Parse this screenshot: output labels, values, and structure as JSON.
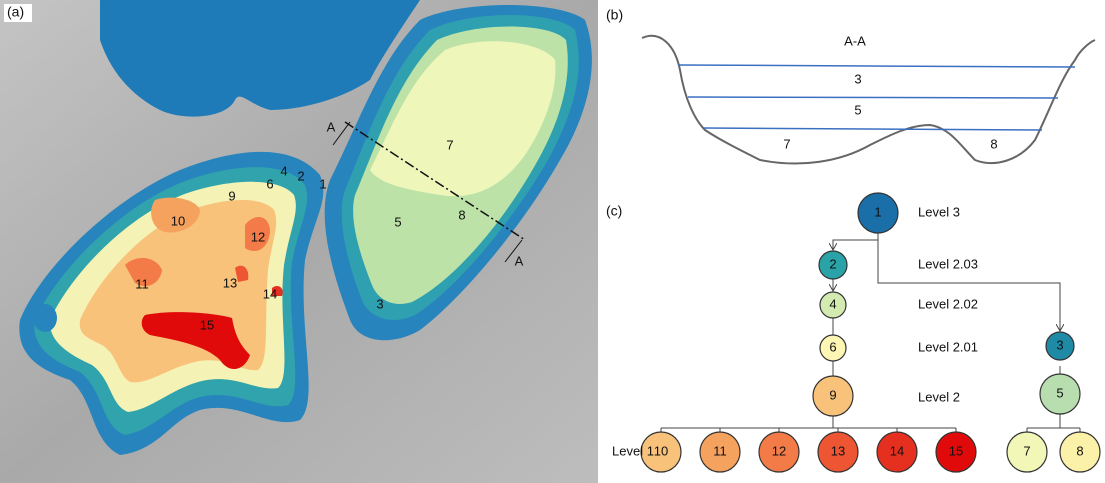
{
  "panels": {
    "a": "(a)",
    "b": "(b)",
    "c": "(c)"
  },
  "map": {
    "labels": [
      "1",
      "2",
      "3",
      "4",
      "5",
      "6",
      "7",
      "8",
      "9",
      "10",
      "11",
      "12",
      "13",
      "14",
      "15"
    ],
    "section_marks": [
      "A",
      "A"
    ]
  },
  "cross_section": {
    "title": "A-A",
    "labels": [
      "3",
      "5",
      "7",
      "8"
    ]
  },
  "tree": {
    "nodes": [
      "1",
      "2",
      "4",
      "6",
      "9",
      "3",
      "5",
      "10",
      "11",
      "12",
      "13",
      "14",
      "15",
      "7",
      "8"
    ],
    "levels": [
      "Level 3",
      "Level 2.03",
      "Level 2.02",
      "Level 2.01",
      "Level 2",
      "Level 1"
    ]
  }
}
